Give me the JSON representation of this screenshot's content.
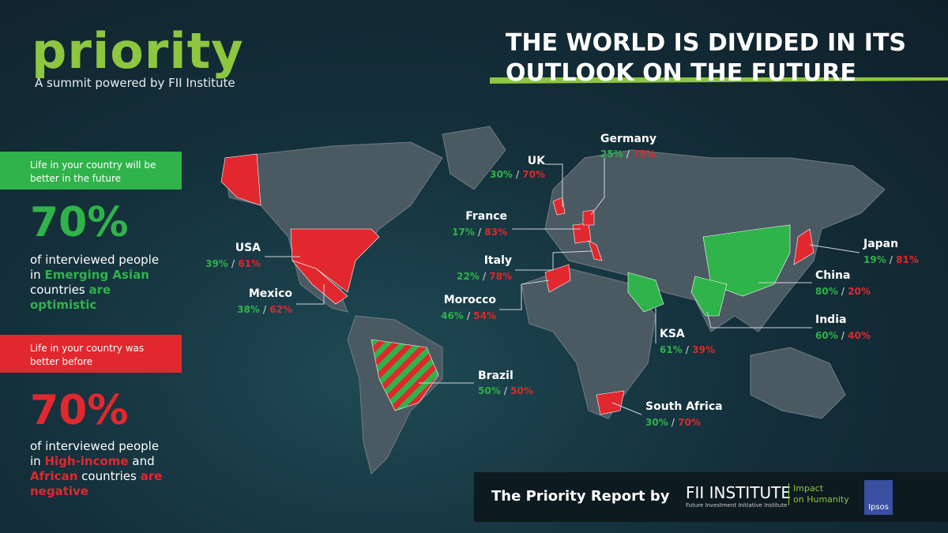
{
  "header": {
    "brand": "priority",
    "tagline": "A summit powered by FII Institute",
    "title_line1": "THE WORLD IS DIVIDED IN ITS",
    "title_line2": "OUTLOOK ON THE FUTURE"
  },
  "sidebar": {
    "positive": {
      "statement": "Life in your country will be better in the future",
      "figure": "70%",
      "description": [
        "of interviewed people in ",
        "Emerging Asian",
        " countries ",
        "are optimistic"
      ]
    },
    "negative": {
      "statement": "Life in your country was better before",
      "figure": "70%",
      "description": [
        "of interviewed people in ",
        "High-income",
        " and ",
        "African",
        " countries ",
        "are negative"
      ]
    }
  },
  "map": {
    "separator": "/",
    "countries": [
      {
        "name": "UK",
        "positive": "30%",
        "negative": "70%"
      },
      {
        "name": "Germany",
        "positive": "25%",
        "negative": "75%"
      },
      {
        "name": "France",
        "positive": "17%",
        "negative": "83%"
      },
      {
        "name": "Italy",
        "positive": "22%",
        "negative": "78%"
      },
      {
        "name": "Morocco",
        "positive": "46%",
        "negative": "54%"
      },
      {
        "name": "USA",
        "positive": "39%",
        "negative": "61%"
      },
      {
        "name": "Mexico",
        "positive": "38%",
        "negative": "62%"
      },
      {
        "name": "Brazil",
        "positive": "50%",
        "negative": "50%"
      },
      {
        "name": "South Africa",
        "positive": "30%",
        "negative": "70%"
      },
      {
        "name": "KSA",
        "positive": "61%",
        "negative": "39%"
      },
      {
        "name": "India",
        "positive": "60%",
        "negative": "40%"
      },
      {
        "name": "China",
        "positive": "80%",
        "negative": "20%"
      },
      {
        "name": "Japan",
        "positive": "19%",
        "negative": "81%"
      }
    ]
  },
  "footer": {
    "report_by": "The Priority Report by",
    "fii_name": "FII INSTITUTE",
    "fii_subtitle": "Future Investment Initiative Institute",
    "motto_line1": "Impact",
    "motto_line2": "on Humanity",
    "ipsos": "Ipsos"
  }
}
